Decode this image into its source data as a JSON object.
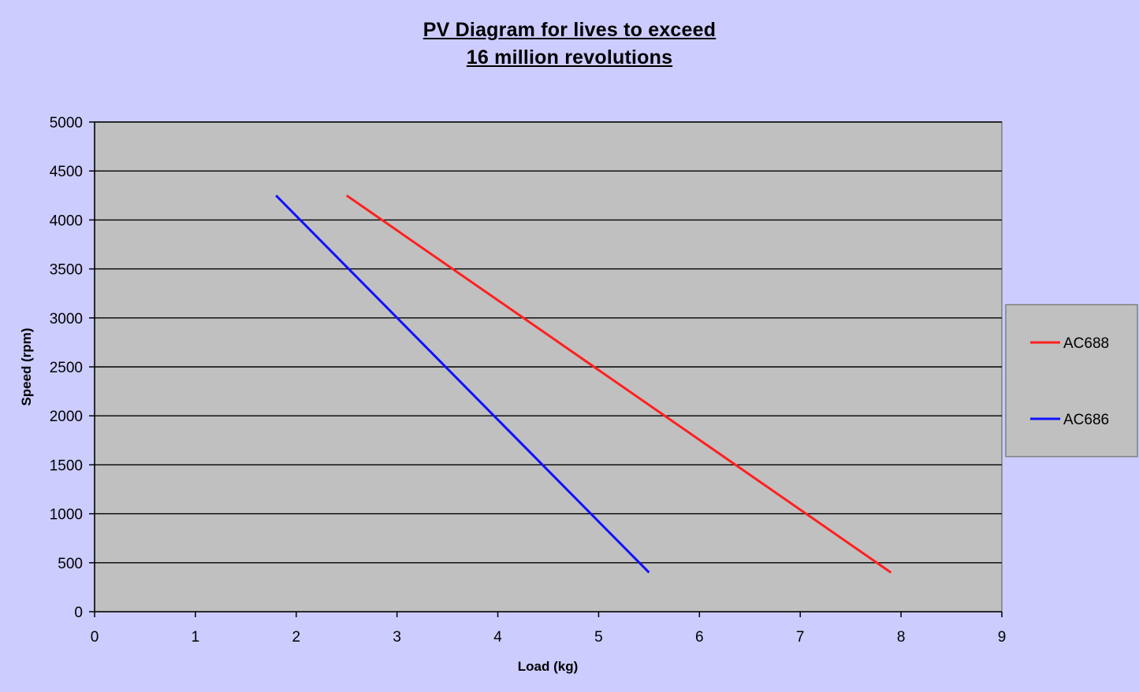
{
  "chart_data": {
    "type": "line",
    "title_lines": [
      "PV Diagram for lives to exceed",
      "16 million revolutions"
    ],
    "xlabel": "Load (kg)",
    "ylabel": "Speed (rpm)",
    "xlim": [
      0,
      9
    ],
    "ylim": [
      0,
      5000
    ],
    "x_ticks": [
      0,
      1,
      2,
      3,
      4,
      5,
      6,
      7,
      8,
      9
    ],
    "y_ticks": [
      0,
      500,
      1000,
      1500,
      2000,
      2500,
      3000,
      3500,
      4000,
      4500,
      5000
    ],
    "grid": "horizontal",
    "legend_position": "right",
    "background": "#c0c0c0",
    "series": [
      {
        "name": "AC688",
        "color": "#ff2020",
        "points": [
          [
            2.5,
            4250
          ],
          [
            7.9,
            400
          ]
        ]
      },
      {
        "name": "AC686",
        "color": "#1010ff",
        "points": [
          [
            1.8,
            4250
          ],
          [
            5.5,
            400
          ]
        ]
      }
    ]
  }
}
